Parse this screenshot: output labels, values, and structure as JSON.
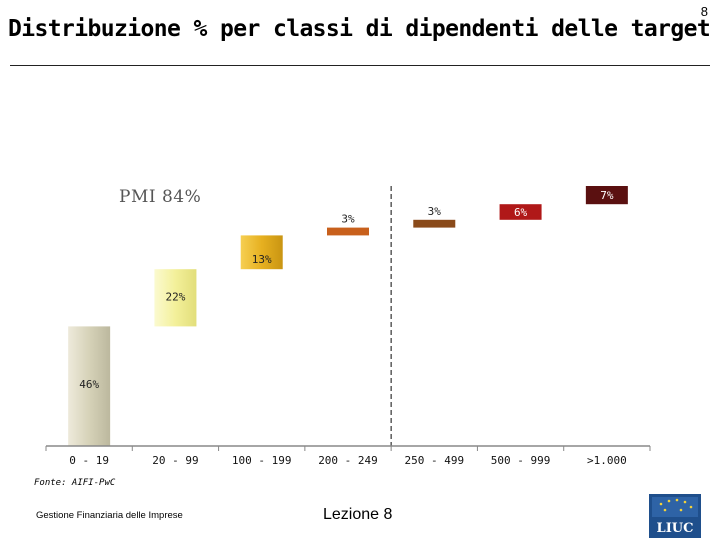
{
  "page": {
    "number": "8",
    "title": "Distribuzione % per classi di dipendenti delle target",
    "annotation": "PMI 84%",
    "source": "Fonte: AIFI-PwC",
    "footer_left": "Gestione Finanziaria delle Imprese",
    "footer_center": "Lezione 8",
    "logo_text": "LIUC"
  },
  "chart_data": {
    "type": "bar",
    "subtype": "waterfall",
    "title": "Distribuzione % per classi di dipendenti delle target",
    "categories": [
      "0 - 19",
      "20 - 99",
      "100 - 199",
      "200 - 249",
      "250 - 499",
      "500 - 999",
      ">1.000"
    ],
    "values": [
      46,
      22,
      13,
      3,
      3,
      6,
      7
    ],
    "labels": [
      "46%",
      "22%",
      "13%",
      "3%",
      "3%",
      "6%",
      "7%"
    ],
    "colors": [
      "#d8d4ba",
      "#f5f2a0",
      "#e6b020",
      "#c8601c",
      "#8a4a1a",
      "#b01818",
      "#5a1010"
    ],
    "annotation": "PMI 84%",
    "divider_after_index": 3,
    "ylim": [
      0,
      100
    ],
    "xlabel": "",
    "ylabel": "",
    "grid": false,
    "legend": "none"
  }
}
